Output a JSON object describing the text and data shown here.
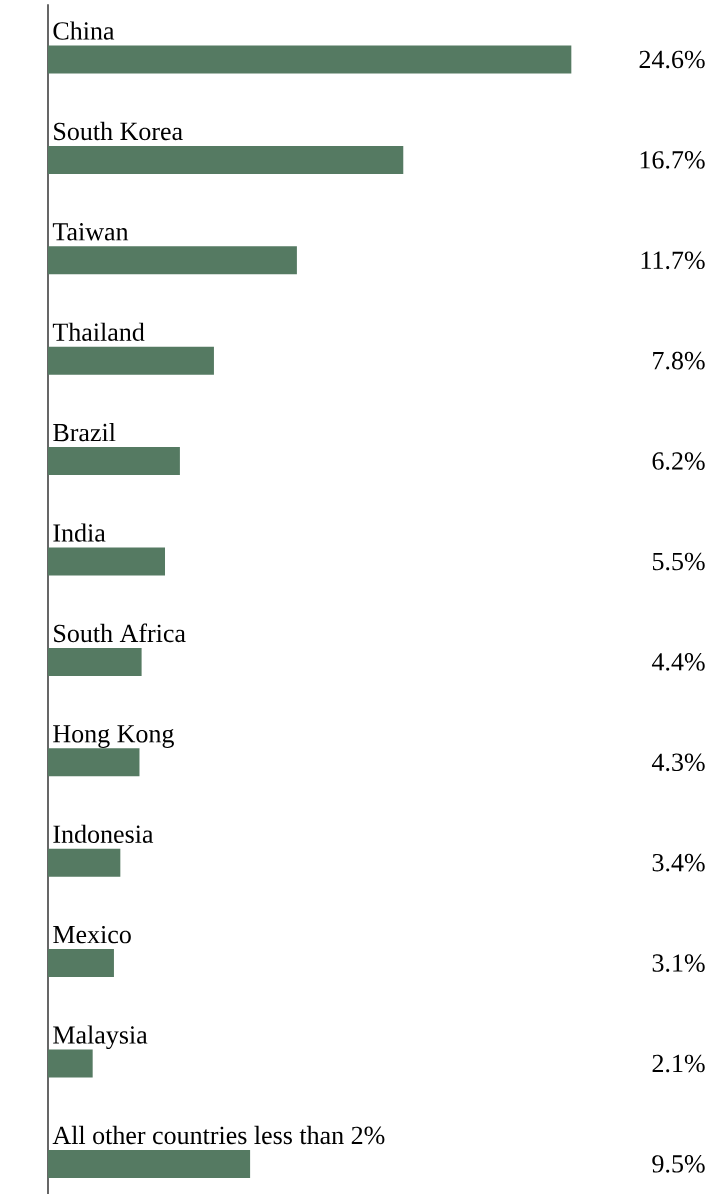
{
  "chart_data": {
    "type": "bar",
    "orientation": "horizontal",
    "color": "#557a62",
    "categories": [
      "China",
      "South Korea",
      "Taiwan",
      "Thailand",
      "Brazil",
      "India",
      "South Africa",
      "Hong Kong",
      "Indonesia",
      "Mexico",
      "Malaysia",
      "All other countries less than 2%"
    ],
    "values": [
      24.6,
      16.7,
      11.7,
      7.8,
      6.2,
      5.5,
      4.4,
      4.3,
      3.4,
      3.1,
      2.1,
      9.5
    ],
    "value_labels": [
      "24.6%",
      "16.7%",
      "11.7%",
      "7.8%",
      "6.2%",
      "5.5%",
      "4.4%",
      "4.3%",
      "3.4%",
      "3.1%",
      "2.1%",
      "9.5%"
    ]
  }
}
